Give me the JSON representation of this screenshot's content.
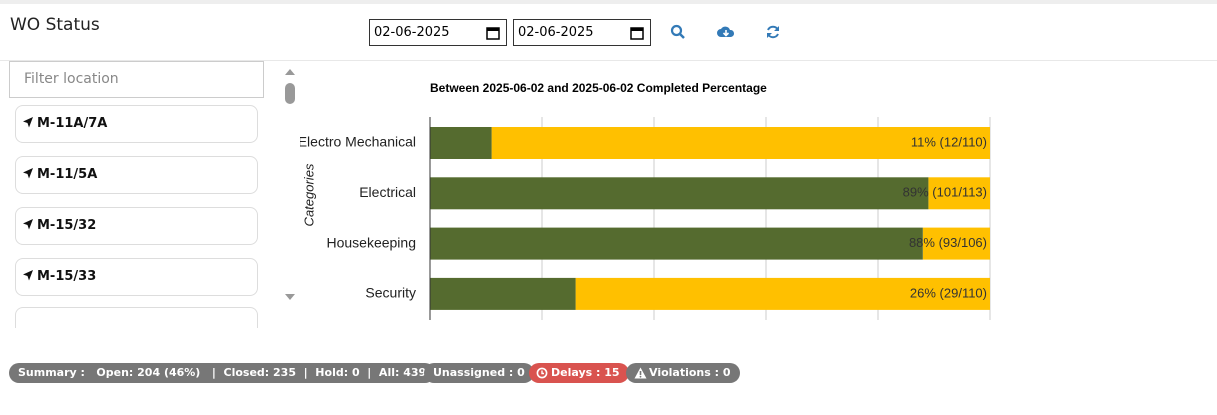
{
  "header": {
    "title": "WO Status",
    "date_from": "02-06-2025",
    "date_to": "02-06-2025"
  },
  "sidebar": {
    "filter_placeholder": "Filter location",
    "locations": [
      "M-11A/7A",
      "M-11/5A",
      "M-15/32",
      "M-15/33"
    ]
  },
  "chart_data": {
    "type": "stacked-percent-bar",
    "title": "Between 2025-06-02 and 2025-06-02 Completed Percentage",
    "y_label": "Categories",
    "categories": [
      "Electro Mechanical",
      "Electrical",
      "Housekeeping",
      "Security"
    ],
    "values": [
      11,
      89,
      88,
      26
    ],
    "value_labels": [
      "11% (12/110)",
      "89% (101/113)",
      "88% (93/106)",
      "26% (29/110)"
    ],
    "color": "#556b2f",
    "rest_color": "#ffc000",
    "xlim": [
      0,
      100
    ],
    "gridlines": [
      0,
      20,
      40,
      60,
      80,
      100
    ]
  },
  "footer": {
    "summary": "Summary :   Open: 204 (46%)   |  Closed: 235  |  Hold: 0  |  All: 439",
    "unassigned": "Unassigned : 0",
    "delays": "Delays : 15",
    "violations": "Violations : 0"
  }
}
